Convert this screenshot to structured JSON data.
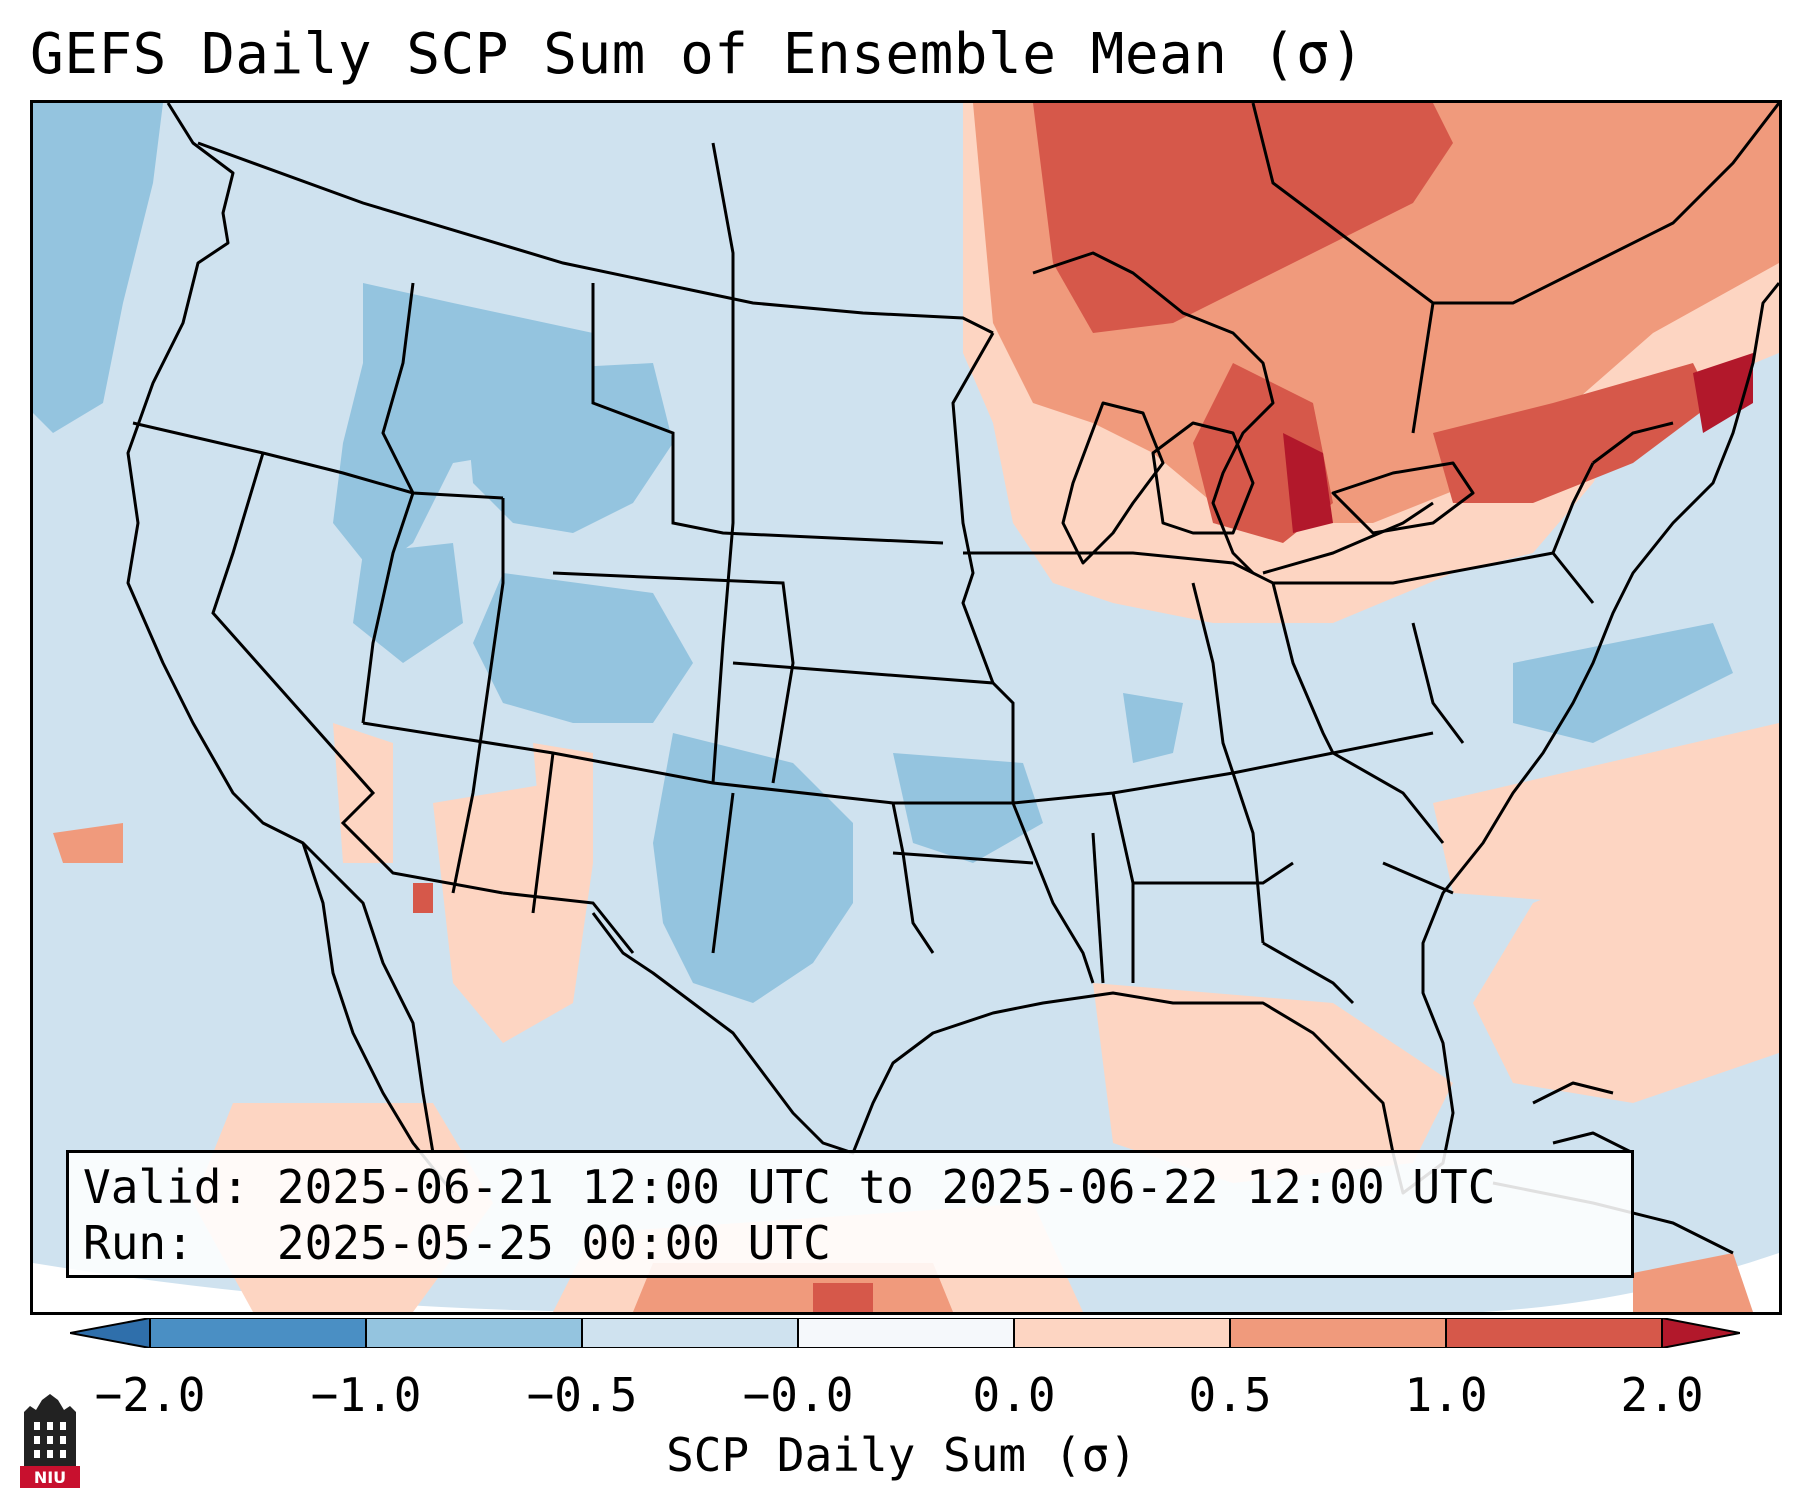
{
  "title": "GEFS Daily SCP Sum of Ensemble Mean (σ)",
  "info": {
    "valid_label": "Valid:",
    "valid_value": "2025-06-21 12:00 UTC to 2025-06-22 12:00 UTC",
    "run_label": "Run:",
    "run_value": "2025-05-25 00:00 UTC"
  },
  "colorbar": {
    "label": "SCP Daily Sum (σ)",
    "ticks": [
      "−2.0",
      "−1.0",
      "−0.5",
      "−0.0",
      "0.0",
      "0.5",
      "1.0",
      "2.0"
    ],
    "bin_colors": [
      "#4a8fc4",
      "#94c4df",
      "#cfe2ef",
      "#f5f8fb",
      "#fdd5c2",
      "#f09a7c",
      "#d6584a"
    ],
    "extend_low_color": "#2f6fab",
    "extend_high_color": "#b2182b"
  },
  "map": {
    "base_color": "#cfe2ef",
    "land_outline_color": "#000000",
    "shading_colors": {
      "neg_med": "#94c4df",
      "neg_dark": "#6aaed6",
      "pos_light": "#fdd5c2",
      "pos_med": "#f09a7c",
      "pos_dark": "#d6584a",
      "pos_max": "#b2182b"
    }
  },
  "logo": {
    "text": "NIU"
  }
}
